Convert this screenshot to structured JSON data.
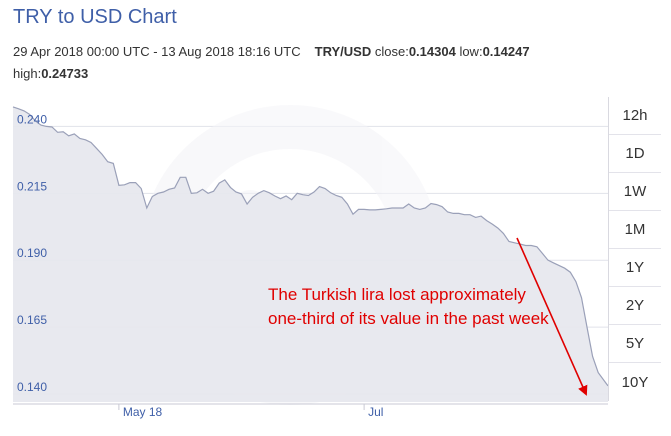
{
  "title": "TRY to USD Chart",
  "summary": {
    "date_range": "29 Apr 2018 00:00 UTC - 13 Aug 2018 18:16 UTC",
    "pair": "TRY/USD",
    "close_label": "close:",
    "close_value": "0.14304",
    "low_label": "low:",
    "low_value": "0.14247",
    "high_label": "high:",
    "high_value": "0.24733"
  },
  "range_buttons": [
    "12h",
    "1D",
    "1W",
    "1M",
    "1Y",
    "2Y",
    "5Y",
    "10Y"
  ],
  "annotation": {
    "text": "The Turkish lira lost approximately one-third of its value in the past week",
    "color": "#e00000"
  },
  "colors": {
    "area_fill": "#e6e7ee",
    "line": "#9aa0b8",
    "tick_text": "#3f5fa8",
    "grid": "#e1e2ea"
  },
  "chart_data": {
    "type": "area",
    "title": "TRY to USD Chart",
    "xlabel": "",
    "ylabel": "",
    "x_ticks": [
      "May 18",
      "Jul"
    ],
    "y_ticks": [
      "0.240",
      "0.215",
      "0.190",
      "0.165",
      "0.140"
    ],
    "ylim": [
      0.137,
      0.251
    ],
    "grid": true,
    "series": [
      {
        "name": "",
        "x": [
          "2018-04-29",
          "2018-04-30",
          "2018-05-01",
          "2018-05-02",
          "2018-05-03",
          "2018-05-04",
          "2018-05-05",
          "2018-05-06",
          "2018-05-07",
          "2018-05-08",
          "2018-05-09",
          "2018-05-10",
          "2018-05-11",
          "2018-05-12",
          "2018-05-13",
          "2018-05-14",
          "2018-05-15",
          "2018-05-16",
          "2018-05-17",
          "2018-05-18",
          "2018-05-19",
          "2018-05-20",
          "2018-05-21",
          "2018-05-22",
          "2018-05-23",
          "2018-05-24",
          "2018-05-25",
          "2018-05-26",
          "2018-05-27",
          "2018-05-28",
          "2018-05-29",
          "2018-05-30",
          "2018-05-31",
          "2018-06-01",
          "2018-06-02",
          "2018-06-03",
          "2018-06-04",
          "2018-06-05",
          "2018-06-06",
          "2018-06-07",
          "2018-06-08",
          "2018-06-09",
          "2018-06-10",
          "2018-06-11",
          "2018-06-12",
          "2018-06-13",
          "2018-06-14",
          "2018-06-15",
          "2018-06-16",
          "2018-06-17",
          "2018-06-18",
          "2018-06-19",
          "2018-06-20",
          "2018-06-21",
          "2018-06-22",
          "2018-06-23",
          "2018-06-24",
          "2018-06-25",
          "2018-06-26",
          "2018-06-27",
          "2018-06-28",
          "2018-06-29",
          "2018-06-30",
          "2018-07-01",
          "2018-07-02",
          "2018-07-03",
          "2018-07-04",
          "2018-07-05",
          "2018-07-06",
          "2018-07-07",
          "2018-07-08",
          "2018-07-09",
          "2018-07-10",
          "2018-07-11",
          "2018-07-12",
          "2018-07-13",
          "2018-07-14",
          "2018-07-15",
          "2018-07-16",
          "2018-07-17",
          "2018-07-18",
          "2018-07-19",
          "2018-07-20",
          "2018-07-21",
          "2018-07-22",
          "2018-07-23",
          "2018-07-24",
          "2018-07-25",
          "2018-07-26",
          "2018-07-27",
          "2018-07-28",
          "2018-07-29",
          "2018-07-30",
          "2018-07-31",
          "2018-08-01",
          "2018-08-02",
          "2018-08-03",
          "2018-08-04",
          "2018-08-05",
          "2018-08-06",
          "2018-08-07",
          "2018-08-08",
          "2018-08-09",
          "2018-08-10",
          "2018-08-11",
          "2018-08-12",
          "2018-08-13"
        ],
        "values": [
          0.2473,
          0.2466,
          0.2458,
          0.2445,
          0.2421,
          0.2405,
          0.24,
          0.2398,
          0.2378,
          0.238,
          0.2365,
          0.2372,
          0.2355,
          0.235,
          0.234,
          0.2318,
          0.2295,
          0.2268,
          0.2262,
          0.218,
          0.2182,
          0.219,
          0.219,
          0.2168,
          0.2095,
          0.2138,
          0.215,
          0.2155,
          0.2165,
          0.217,
          0.221,
          0.221,
          0.215,
          0.2152,
          0.2165,
          0.215,
          0.2158,
          0.2188,
          0.22,
          0.2172,
          0.2155,
          0.2148,
          0.211,
          0.2135,
          0.215,
          0.216,
          0.2152,
          0.214,
          0.213,
          0.214,
          0.2126,
          0.215,
          0.2145,
          0.2142,
          0.2155,
          0.2175,
          0.2168,
          0.2152,
          0.2142,
          0.2135,
          0.211,
          0.2072,
          0.209,
          0.209,
          0.2088,
          0.2088,
          0.209,
          0.2092,
          0.2095,
          0.2095,
          0.2095,
          0.211,
          0.2095,
          0.209,
          0.2095,
          0.2112,
          0.2108,
          0.21,
          0.208,
          0.2075,
          0.2075,
          0.207,
          0.207,
          0.206,
          0.2065,
          0.2048,
          0.2035,
          0.202,
          0.2,
          0.197,
          0.1965,
          0.196,
          0.1955,
          0.1955,
          0.195,
          0.1925,
          0.19,
          0.189,
          0.188,
          0.187,
          0.1855,
          0.182,
          0.176,
          0.165,
          0.154,
          0.148,
          0.143
        ]
      }
    ]
  }
}
